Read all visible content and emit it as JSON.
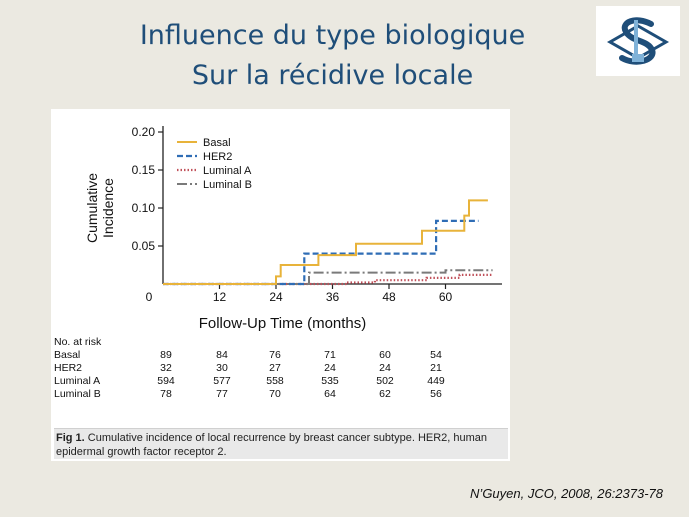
{
  "slide": {
    "title_line1": "Influence du type biologique",
    "title_line2": "Sur la récidive locale",
    "citation": "N’Guyen, JCO, 2008, 26:2373-78"
  },
  "colors": {
    "title": "#1f4e79",
    "background": "#ebe9e1",
    "basal": "#e8b33a",
    "her2": "#2f6db5",
    "luminal_a": "#c0505a",
    "luminal_b": "#7a7a7a"
  },
  "chart_data": {
    "type": "line",
    "title": "",
    "xlabel": "Follow-Up Time (months)",
    "ylabel": "Cumulative Incidence",
    "xlim": [
      0,
      72
    ],
    "ylim": [
      0,
      0.2
    ],
    "x_ticks": [
      "0",
      "12",
      "24",
      "36",
      "48",
      "60"
    ],
    "y_ticks": [
      "0.20",
      "0.15",
      "0.10",
      "0.05"
    ],
    "x_tick_values": [
      0,
      12,
      24,
      36,
      48,
      60
    ],
    "y_tick_values": [
      0.2,
      0.15,
      0.1,
      0.05
    ],
    "legend_position": "top-left",
    "series": [
      {
        "name": "Basal",
        "style": "solid",
        "points": [
          [
            0,
            0
          ],
          [
            24,
            0
          ],
          [
            24,
            0.01
          ],
          [
            25,
            0.01
          ],
          [
            25,
            0.025
          ],
          [
            33,
            0.025
          ],
          [
            33,
            0.038
          ],
          [
            41,
            0.038
          ],
          [
            41,
            0.053
          ],
          [
            55,
            0.053
          ],
          [
            55,
            0.07
          ],
          [
            64,
            0.07
          ],
          [
            64,
            0.09
          ],
          [
            65,
            0.09
          ],
          [
            65,
            0.11
          ],
          [
            69,
            0.11
          ]
        ]
      },
      {
        "name": "HER2",
        "style": "dashed",
        "points": [
          [
            0,
            0
          ],
          [
            30,
            0
          ],
          [
            30,
            0.04
          ],
          [
            58,
            0.04
          ],
          [
            58,
            0.083
          ],
          [
            67,
            0.083
          ]
        ]
      },
      {
        "name": "Luminal A",
        "style": "dotted",
        "points": [
          [
            0,
            0
          ],
          [
            39,
            0
          ],
          [
            39,
            0.002
          ],
          [
            45,
            0.002
          ],
          [
            45,
            0.005
          ],
          [
            56,
            0.005
          ],
          [
            56,
            0.008
          ],
          [
            63,
            0.008
          ],
          [
            63,
            0.012
          ],
          [
            70,
            0.012
          ]
        ]
      },
      {
        "name": "Luminal B",
        "style": "dashdot",
        "points": [
          [
            0,
            0
          ],
          [
            31,
            0
          ],
          [
            31,
            0.015
          ],
          [
            60,
            0.015
          ],
          [
            60,
            0.018
          ],
          [
            70,
            0.018
          ]
        ]
      }
    ]
  },
  "risk_table": {
    "header": "No. at risk",
    "rows": [
      {
        "label": "Basal",
        "values": [
          "89",
          "84",
          "76",
          "71",
          "60",
          "54"
        ]
      },
      {
        "label": "HER2",
        "values": [
          "32",
          "30",
          "27",
          "24",
          "24",
          "21"
        ]
      },
      {
        "label": "Luminal A",
        "values": [
          "594",
          "577",
          "558",
          "535",
          "502",
          "449"
        ]
      },
      {
        "label": "Luminal B",
        "values": [
          "78",
          "77",
          "70",
          "64",
          "62",
          "56"
        ]
      }
    ]
  },
  "caption": {
    "label": "Fig 1.",
    "text": " Cumulative incidence of local recurrence by breast cancer subtype. HER2, human epidermal growth factor receptor 2."
  }
}
